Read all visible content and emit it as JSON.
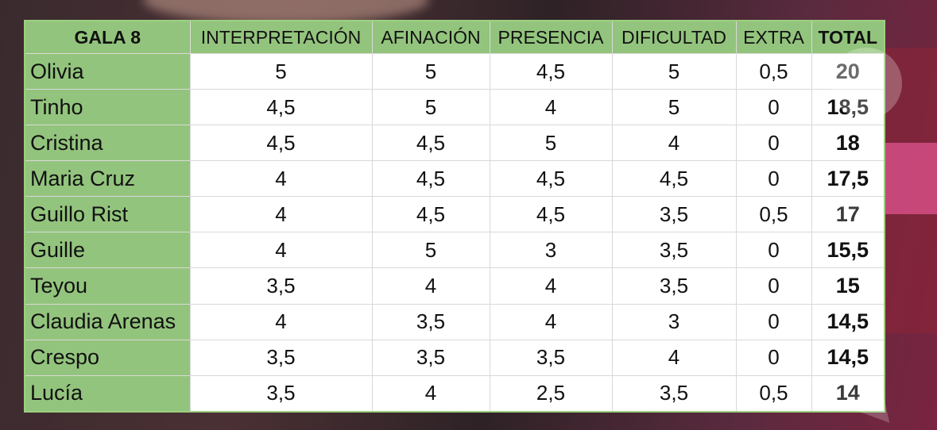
{
  "table": {
    "headers": [
      "GALA 8",
      "INTERPRETACIÓN",
      "AFINACIÓN",
      "PRESENCIA",
      "DIFICULTAD",
      "EXTRA",
      "TOTAL"
    ],
    "rows": [
      {
        "name": "Olivia",
        "interpretacion": "5",
        "afinacion": "5",
        "presencia": "4,5",
        "dificultad": "5",
        "extra": "0,5",
        "total": "20"
      },
      {
        "name": "Tinho",
        "interpretacion": "4,5",
        "afinacion": "5",
        "presencia": "4",
        "dificultad": "5",
        "extra": "0",
        "total": "18,5"
      },
      {
        "name": "Cristina",
        "interpretacion": "4,5",
        "afinacion": "4,5",
        "presencia": "5",
        "dificultad": "4",
        "extra": "0",
        "total": "18"
      },
      {
        "name": "Maria Cruz",
        "interpretacion": "4",
        "afinacion": "4,5",
        "presencia": "4,5",
        "dificultad": "4,5",
        "extra": "0",
        "total": "17,5"
      },
      {
        "name": "Guillo Rist",
        "interpretacion": "4",
        "afinacion": "4,5",
        "presencia": "4,5",
        "dificultad": "3,5",
        "extra": "0,5",
        "total": "17"
      },
      {
        "name": "Guille",
        "interpretacion": "4",
        "afinacion": "5",
        "presencia": "3",
        "dificultad": "3,5",
        "extra": "0",
        "total": "15,5"
      },
      {
        "name": "Teyou",
        "interpretacion": "3,5",
        "afinacion": "4",
        "presencia": "4",
        "dificultad": "3,5",
        "extra": "0",
        "total": "15"
      },
      {
        "name": "Claudia Arenas",
        "interpretacion": "4",
        "afinacion": "3,5",
        "presencia": "4",
        "dificultad": "3",
        "extra": "0",
        "total": "14,5"
      },
      {
        "name": "Crespo",
        "interpretacion": "3,5",
        "afinacion": "3,5",
        "presencia": "3,5",
        "dificultad": "4",
        "extra": "0",
        "total": "14,5"
      },
      {
        "name": "Lucía",
        "interpretacion": "3,5",
        "afinacion": "4",
        "presencia": "2,5",
        "dificultad": "3,5",
        "extra": "0,5",
        "total": "14"
      }
    ]
  },
  "colors": {
    "header_green": "#93c47d",
    "cell_white": "#ffffff",
    "text": "#111111"
  }
}
